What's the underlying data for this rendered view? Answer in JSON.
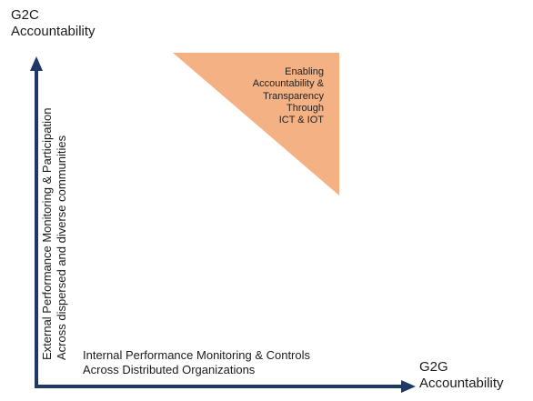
{
  "y_axis": {
    "end_label_line1": "G2C",
    "end_label_line2": "Accountability",
    "desc_line1": "External Performance  Monitoring & Participation",
    "desc_line2": "Across dispersed and diverse communities"
  },
  "x_axis": {
    "end_label_line1": "G2G",
    "end_label_line2": "Accountability",
    "desc_line1": "Internal Performance Monitoring & Controls",
    "desc_line2": "Across Distributed Organizations"
  },
  "triangle": {
    "lines": [
      "Enabling",
      "Accountability &",
      "Transparency",
      "Through",
      "ICT & IOT"
    ],
    "color": "#f4b183"
  },
  "colors": {
    "axis": "#1f3864"
  }
}
